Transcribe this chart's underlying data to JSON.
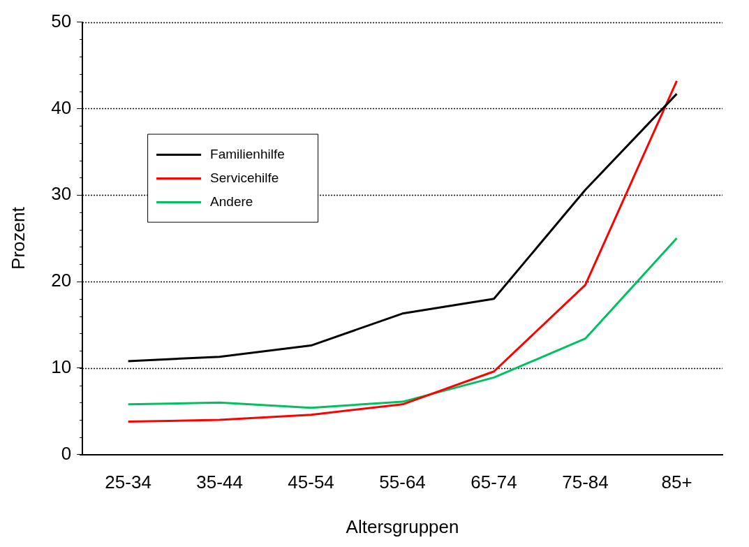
{
  "chart_data": {
    "type": "line",
    "xlabel": "Altersgruppen",
    "ylabel": "Prozent",
    "categories": [
      "25-34",
      "35-44",
      "45-54",
      "55-64",
      "65-74",
      "75-84",
      "85+"
    ],
    "series": [
      {
        "name": "Familienhilfe",
        "color": "#000000",
        "values": [
          10.8,
          11.3,
          12.6,
          16.3,
          18.0,
          30.6,
          41.7
        ]
      },
      {
        "name": "Servicehilfe",
        "color": "#ff0000",
        "values": [
          3.8,
          4.0,
          4.6,
          5.8,
          9.6,
          19.6,
          43.2
        ]
      },
      {
        "name": "Andere",
        "color": "#00c060",
        "values": [
          5.8,
          6.0,
          5.4,
          6.1,
          8.9,
          13.4,
          25.0
        ]
      }
    ],
    "ylim": [
      0,
      50
    ],
    "yticks": [
      0,
      10,
      20,
      30,
      40,
      50
    ],
    "grid": "y",
    "legend": "top left",
    "marker": "none",
    "line_style": "solid"
  }
}
